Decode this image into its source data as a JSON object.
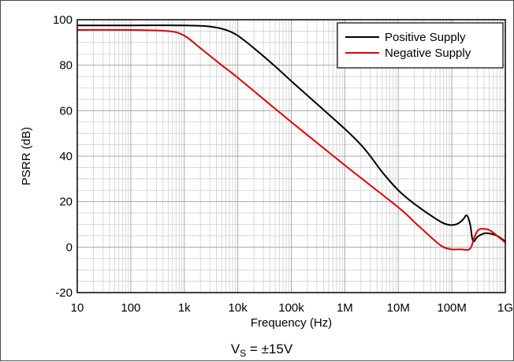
{
  "chart_data": {
    "type": "line",
    "xlabel": "Frequency (Hz)",
    "ylabel": "PSRR (dB)",
    "xscale": "log",
    "xlim": [
      10,
      1000000000
    ],
    "ylim": [
      -20,
      100
    ],
    "grid": true,
    "legend_position": "top-right",
    "x_tick_labels": [
      "10",
      "100",
      "1k",
      "10k",
      "100k",
      "1M",
      "10M",
      "100M",
      "1G"
    ],
    "y_tick_labels": [
      "-20",
      "0",
      "20",
      "40",
      "60",
      "80",
      "100"
    ],
    "caption": {
      "main": "V",
      "sub": "S",
      "rest": " = ±15V"
    },
    "series": [
      {
        "name": "Positive Supply",
        "color": "#000000",
        "points": [
          [
            10,
            97.5
          ],
          [
            100,
            97.5
          ],
          [
            1000,
            97.5
          ],
          [
            3000,
            97
          ],
          [
            6000,
            95.5
          ],
          [
            10000,
            93
          ],
          [
            20000,
            87.5
          ],
          [
            50000,
            79.5
          ],
          [
            100000,
            73
          ],
          [
            300000,
            63
          ],
          [
            1000000,
            52
          ],
          [
            2000000,
            45
          ],
          [
            3000000,
            40
          ],
          [
            5000000,
            33
          ],
          [
            10000000,
            25
          ],
          [
            20000000,
            19
          ],
          [
            50000000,
            12.5
          ],
          [
            80000000,
            10
          ],
          [
            120000000,
            10
          ],
          [
            160000000,
            12
          ],
          [
            190000000,
            14
          ],
          [
            220000000,
            10
          ],
          [
            240000000,
            4
          ],
          [
            260000000,
            2.5
          ],
          [
            300000000,
            4.5
          ],
          [
            400000000,
            6
          ],
          [
            500000000,
            6
          ],
          [
            700000000,
            5
          ],
          [
            1000000000,
            2.5
          ]
        ]
      },
      {
        "name": "Negative Supply",
        "color": "#e00000",
        "points": [
          [
            10,
            95.5
          ],
          [
            100,
            95.5
          ],
          [
            500,
            95
          ],
          [
            1000,
            93
          ],
          [
            2000,
            87.5
          ],
          [
            5000,
            80
          ],
          [
            10000,
            74.5
          ],
          [
            100000,
            55
          ],
          [
            1000000,
            36
          ],
          [
            10000000,
            17.5
          ],
          [
            20000000,
            11
          ],
          [
            50000000,
            2.5
          ],
          [
            70000000,
            0
          ],
          [
            100000000,
            -1
          ],
          [
            150000000,
            -1
          ],
          [
            200000000,
            -1.2
          ],
          [
            230000000,
            0
          ],
          [
            260000000,
            4
          ],
          [
            300000000,
            7
          ],
          [
            350000000,
            8
          ],
          [
            500000000,
            7.5
          ],
          [
            700000000,
            5
          ],
          [
            1000000000,
            2
          ]
        ]
      }
    ]
  }
}
